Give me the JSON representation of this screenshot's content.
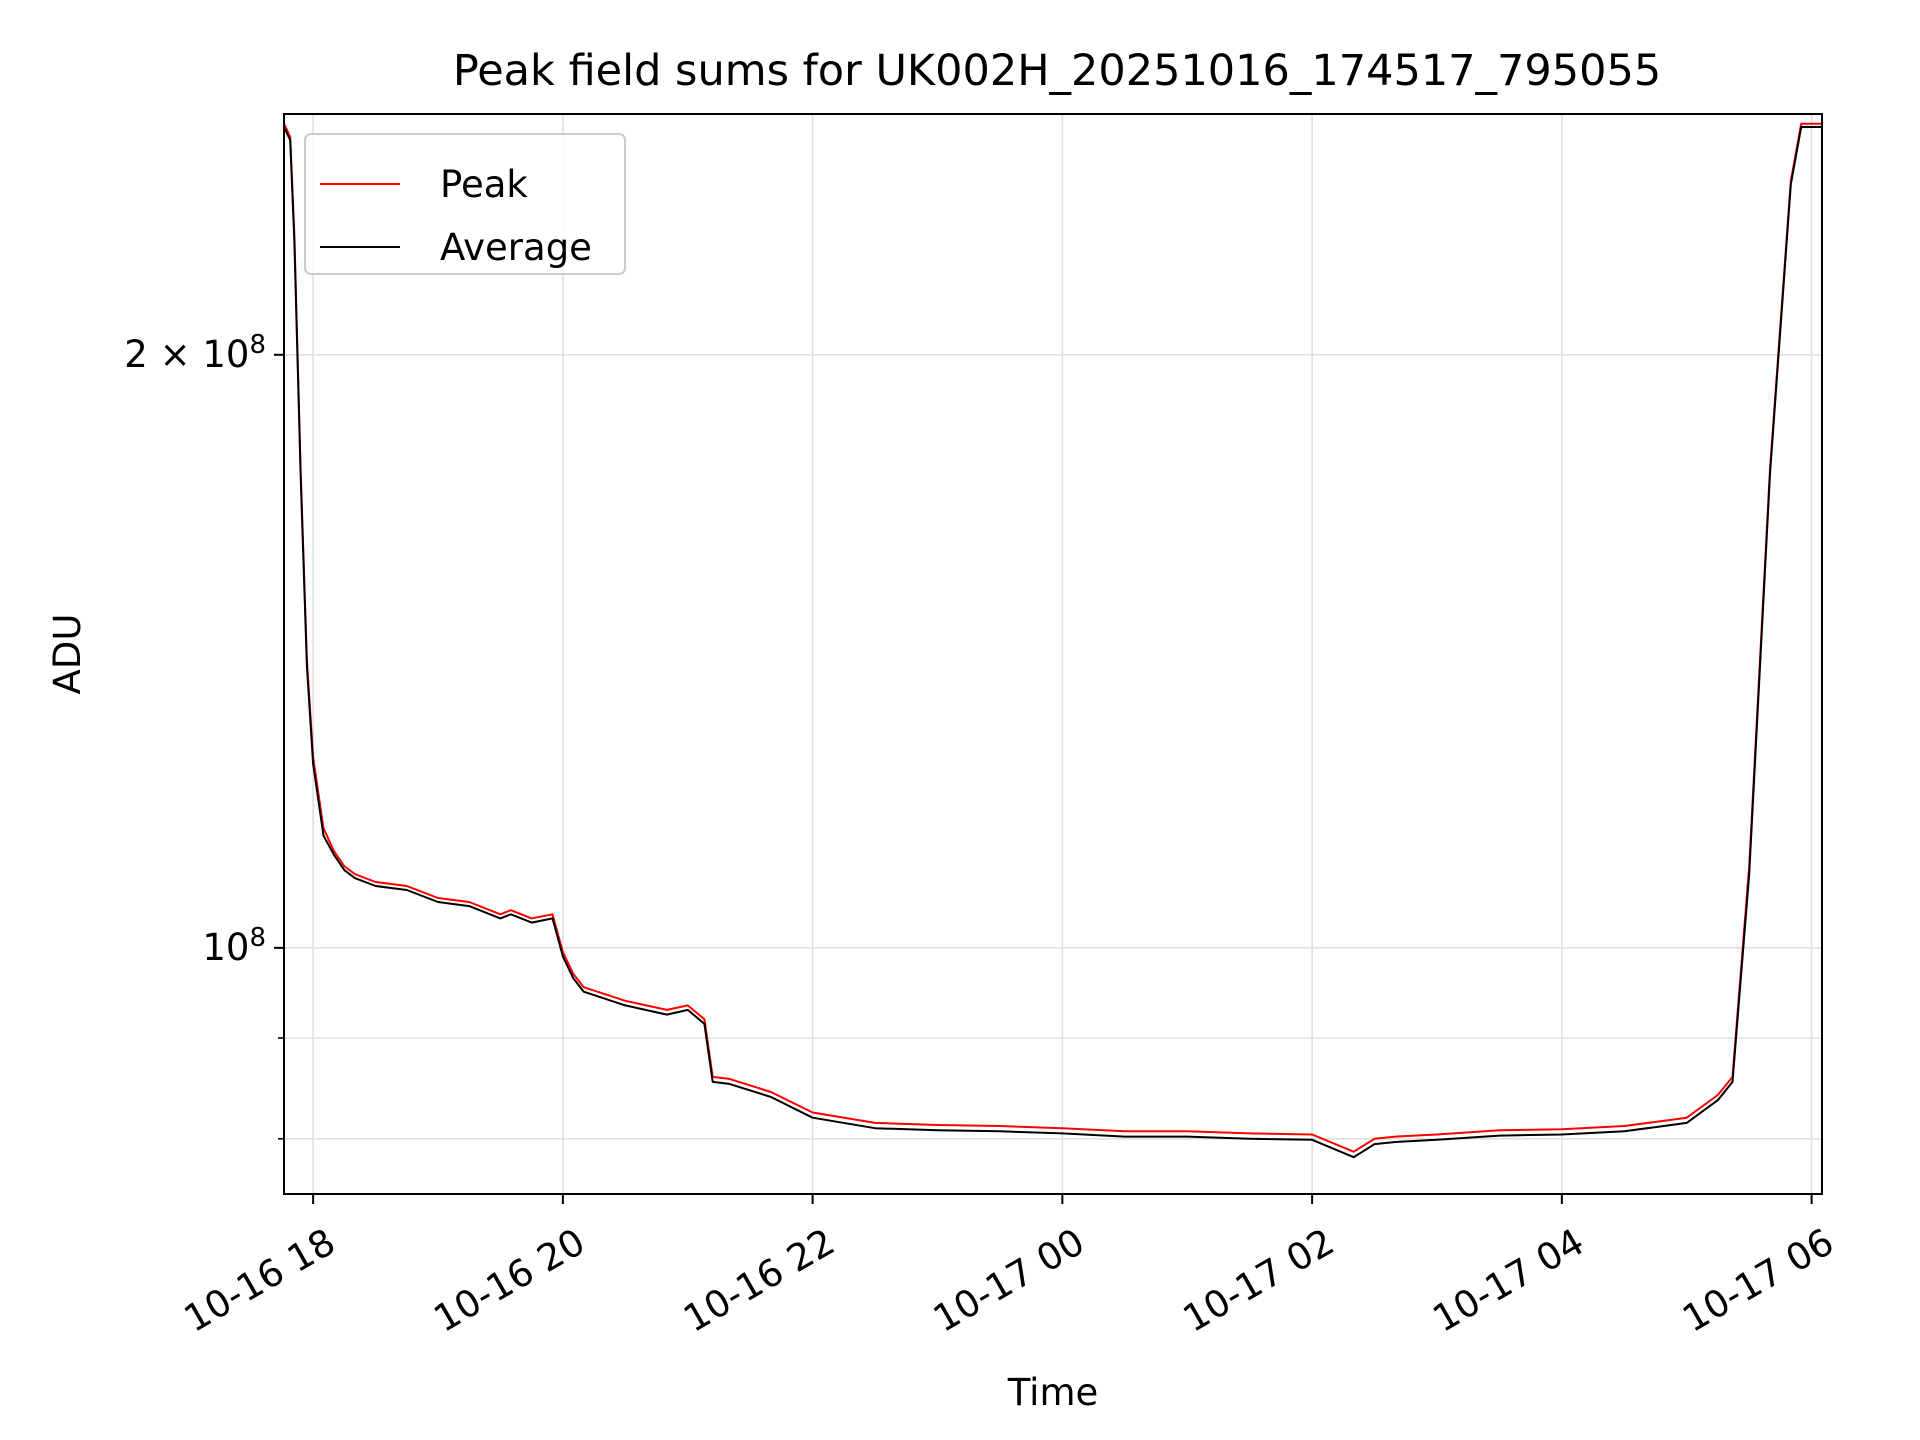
{
  "chart_data": {
    "type": "line",
    "title": "Peak field sums for UK002H_20251016_174517_795055",
    "xlabel": "Time",
    "ylabel": "ADU",
    "yscale": "log",
    "ylim": [
      75000000,
      265000000
    ],
    "xlim": [
      "2025-10-16 17:46",
      "2025-10-17 06:05"
    ],
    "x_ticks": [
      "2025-10-16 18:00",
      "2025-10-16 20:00",
      "2025-10-16 22:00",
      "2025-10-17 00:00",
      "2025-10-17 02:00",
      "2025-10-17 04:00",
      "2025-10-17 06:00"
    ],
    "x_tick_labels": [
      "10-16 18",
      "10-16 20",
      "10-16 22",
      "10-17 00",
      "10-17 02",
      "10-17 04",
      "10-17 06"
    ],
    "y_ticks_major": [
      100000000,
      200000000
    ],
    "y_tick_labels": [
      "10^8",
      "2×10^8"
    ],
    "y_ticks_minor": [
      80000000,
      90000000
    ],
    "grid": true,
    "legend": "top-left",
    "series": [
      {
        "name": "Peak",
        "color": "#ff0000",
        "x": [
          "2025-10-16 17:46",
          "2025-10-16 17:49",
          "2025-10-16 17:51",
          "2025-10-16 17:54",
          "2025-10-16 17:57",
          "2025-10-16 18:00",
          "2025-10-16 18:05",
          "2025-10-16 18:10",
          "2025-10-16 18:15",
          "2025-10-16 18:20",
          "2025-10-16 18:30",
          "2025-10-16 18:45",
          "2025-10-16 19:00",
          "2025-10-16 19:15",
          "2025-10-16 19:30",
          "2025-10-16 19:35",
          "2025-10-16 19:45",
          "2025-10-16 19:55",
          "2025-10-16 20:00",
          "2025-10-16 20:05",
          "2025-10-16 20:10",
          "2025-10-16 20:30",
          "2025-10-16 20:50",
          "2025-10-16 21:00",
          "2025-10-16 21:08",
          "2025-10-16 21:12",
          "2025-10-16 21:20",
          "2025-10-16 21:40",
          "2025-10-16 22:00",
          "2025-10-16 22:30",
          "2025-10-16 23:00",
          "2025-10-16 23:30",
          "2025-10-17 00:00",
          "2025-10-17 00:30",
          "2025-10-17 01:00",
          "2025-10-17 01:30",
          "2025-10-17 02:00",
          "2025-10-17 02:20",
          "2025-10-17 02:30",
          "2025-10-17 02:40",
          "2025-10-17 03:00",
          "2025-10-17 03:30",
          "2025-10-17 04:00",
          "2025-10-17 04:30",
          "2025-10-17 05:00",
          "2025-10-17 05:15",
          "2025-10-17 05:22",
          "2025-10-17 05:30",
          "2025-10-17 05:40",
          "2025-10-17 05:50",
          "2025-10-17 05:55",
          "2025-10-17 06:05"
        ],
        "values": [
          262000000,
          258000000,
          230000000,
          175000000,
          140000000,
          125000000,
          115000000,
          112000000,
          110000000,
          109000000,
          108000000,
          107500000,
          106000000,
          105500000,
          104000000,
          104500000,
          103500000,
          104000000,
          99500000,
          97000000,
          95500000,
          94000000,
          93000000,
          93500000,
          92000000,
          86000000,
          85800000,
          84500000,
          82500000,
          81500000,
          81300000,
          81200000,
          81000000,
          80700000,
          80700000,
          80500000,
          80400000,
          78800000,
          80000000,
          80200000,
          80400000,
          80800000,
          80900000,
          81200000,
          82000000,
          84200000,
          86000000,
          110000000,
          175000000,
          245000000,
          262000000,
          262000000
        ]
      },
      {
        "name": "Average",
        "color": "#000000",
        "x": [
          "2025-10-16 17:46",
          "2025-10-16 17:49",
          "2025-10-16 17:51",
          "2025-10-16 17:54",
          "2025-10-16 17:57",
          "2025-10-16 18:00",
          "2025-10-16 18:05",
          "2025-10-16 18:10",
          "2025-10-16 18:15",
          "2025-10-16 18:20",
          "2025-10-16 18:30",
          "2025-10-16 18:45",
          "2025-10-16 19:00",
          "2025-10-16 19:15",
          "2025-10-16 19:30",
          "2025-10-16 19:35",
          "2025-10-16 19:45",
          "2025-10-16 19:55",
          "2025-10-16 20:00",
          "2025-10-16 20:05",
          "2025-10-16 20:10",
          "2025-10-16 20:30",
          "2025-10-16 20:50",
          "2025-10-16 21:00",
          "2025-10-16 21:08",
          "2025-10-16 21:12",
          "2025-10-16 21:20",
          "2025-10-16 21:40",
          "2025-10-16 22:00",
          "2025-10-16 22:30",
          "2025-10-16 23:00",
          "2025-10-16 23:30",
          "2025-10-17 00:00",
          "2025-10-17 00:30",
          "2025-10-17 01:00",
          "2025-10-17 01:30",
          "2025-10-17 02:00",
          "2025-10-17 02:20",
          "2025-10-17 02:30",
          "2025-10-17 02:40",
          "2025-10-17 03:00",
          "2025-10-17 03:30",
          "2025-10-17 04:00",
          "2025-10-17 04:30",
          "2025-10-17 05:00",
          "2025-10-17 05:15",
          "2025-10-17 05:22",
          "2025-10-17 05:30",
          "2025-10-17 05:40",
          "2025-10-17 05:50",
          "2025-10-17 05:55",
          "2025-10-17 06:05"
        ],
        "values": [
          261000000,
          257000000,
          228000000,
          174000000,
          139000000,
          124000000,
          114000000,
          111500000,
          109500000,
          108500000,
          107500000,
          107000000,
          105500000,
          105000000,
          103500000,
          104000000,
          103000000,
          103500000,
          99000000,
          96500000,
          95000000,
          93500000,
          92500000,
          93000000,
          91500000,
          85500000,
          85300000,
          84000000,
          82000000,
          81000000,
          80800000,
          80700000,
          80500000,
          80200000,
          80200000,
          80000000,
          79900000,
          78300000,
          79500000,
          79700000,
          79900000,
          80300000,
          80400000,
          80700000,
          81500000,
          83700000,
          85500000,
          109000000,
          174000000,
          244000000,
          261000000,
          261000000
        ]
      }
    ]
  }
}
